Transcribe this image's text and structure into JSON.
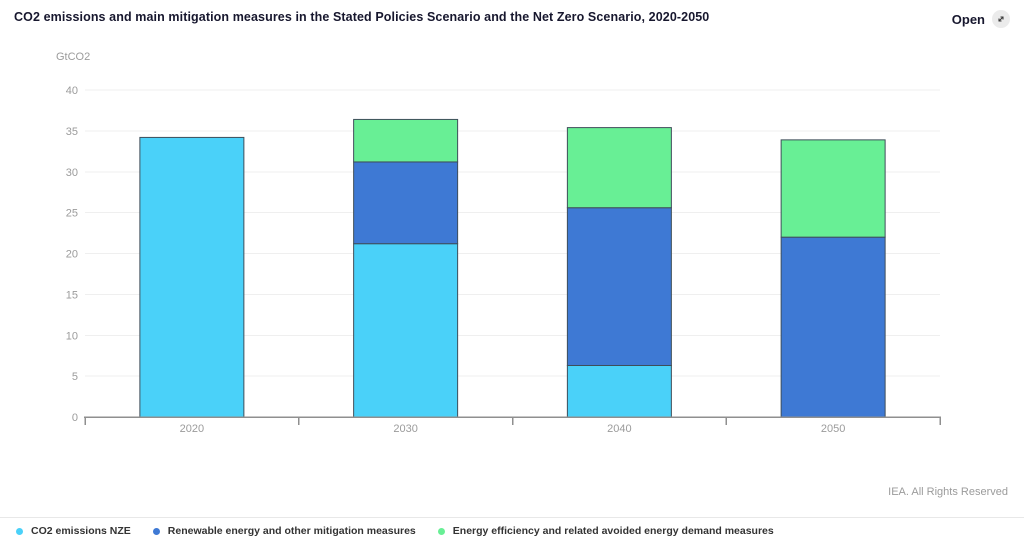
{
  "header": {
    "open_label": "Open"
  },
  "footer": {
    "credit": "IEA. All Rights Reserved"
  },
  "colors": {
    "cyan": "#4AD1F9",
    "blue": "#3E79D4",
    "green": "#68EF95",
    "axis": "#8f8f8f",
    "grid": "#efefef",
    "label": "#9b9b9b",
    "segment_border": "#3f4e5a"
  },
  "chart_data": {
    "type": "bar",
    "stacked": true,
    "title": "CO2 emissions and main mitigation measures in the Stated Policies Scenario and the Net Zero Scenario, 2020-2050",
    "xlabel": "",
    "ylabel": "GtCO2",
    "categories": [
      "2020",
      "2030",
      "2040",
      "2050"
    ],
    "series": [
      {
        "name": "CO2 emissions NZE",
        "color": "#4AD1F9",
        "values": [
          34.2,
          21.2,
          6.3,
          0
        ]
      },
      {
        "name": "Renewable energy and other mitigation measures",
        "color": "#3E79D4",
        "values": [
          0,
          10,
          19.3,
          22
        ]
      },
      {
        "name": "Energy efficiency and related avoided energy demand measures",
        "color": "#68EF95",
        "values": [
          0,
          5.2,
          9.8,
          11.9
        ]
      }
    ],
    "stack_totals": [
      34.2,
      36.4,
      35.4,
      33.9
    ],
    "ylim": [
      0,
      40
    ],
    "yticks": [
      0,
      5,
      10,
      15,
      20,
      25,
      30,
      35,
      40
    ],
    "grid": true,
    "legend_position": "bottom-left"
  }
}
